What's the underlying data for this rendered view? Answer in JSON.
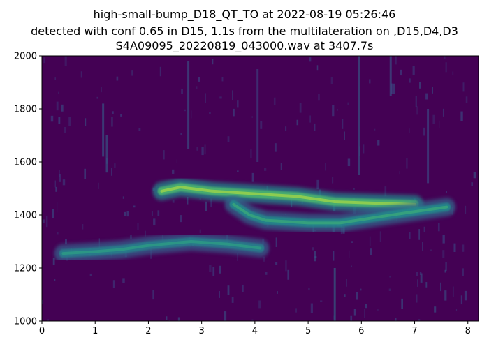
{
  "title_lines": [
    "high-small-bump_D18_QT_TO at 2022-08-19 05:26:46",
    "detected with conf 0.65 in D15, 1.1s from the multilateration on ,D15,D4,D3",
    "S4A09095_20220819_043000.wav at 3407.7s"
  ],
  "chart_data": {
    "type": "heatmap",
    "xlim": [
      0,
      8.2
    ],
    "ylim": [
      1000,
      2000
    ],
    "xticks": [
      0,
      1,
      2,
      3,
      4,
      5,
      6,
      7,
      8
    ],
    "yticks": [
      1000,
      1200,
      1400,
      1600,
      1800,
      2000
    ],
    "grid": false,
    "colormap": "viridis",
    "background_color": "#440154",
    "features": [
      {
        "kind": "call",
        "x": [
          2.25,
          2.6,
          3.2,
          4.0,
          4.8,
          5.5,
          6.2,
          7.0
        ],
        "y": [
          1490,
          1505,
          1490,
          1480,
          1470,
          1450,
          1445,
          1440
        ],
        "intensity": 0.85
      },
      {
        "kind": "call",
        "x": [
          3.6,
          3.9,
          4.2,
          5.0,
          5.6,
          6.4,
          7.6
        ],
        "y": [
          1440,
          1400,
          1380,
          1370,
          1370,
          1395,
          1430
        ],
        "intensity": 0.6
      },
      {
        "kind": "call",
        "x": [
          0.4,
          1.0,
          1.5,
          2.0,
          2.8,
          3.5,
          4.1
        ],
        "y": [
          1255,
          1262,
          1270,
          1285,
          1300,
          1290,
          1275
        ],
        "intensity": 0.55
      }
    ]
  }
}
